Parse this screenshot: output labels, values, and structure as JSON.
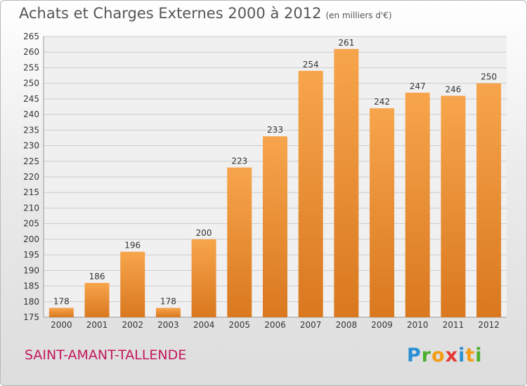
{
  "header": {
    "title": "Achats et Charges Externes 2000 à 2012",
    "subtitle": "(en milliers d'€)"
  },
  "footer": {
    "city": "SAINT-AMANT-TALLENDE",
    "logo": [
      "P",
      "r",
      "o",
      "x",
      "i",
      "t",
      "i"
    ],
    "logo_colors": [
      "#2a8fd4",
      "#4caf2e",
      "#f39c12",
      "#e53935",
      "#2a8fd4",
      "#f39c12",
      "#4caf2e"
    ]
  },
  "colors": {
    "bar_light": "#f7a54c",
    "bar_dark": "#d9781f",
    "grid": "#cccccc",
    "axis_text": "#333333"
  },
  "chart_data": {
    "type": "bar",
    "title": "Achats et Charges Externes 2000 à 2012",
    "subtitle": "(en milliers d'€)",
    "categories": [
      "2000",
      "2001",
      "2002",
      "2003",
      "2004",
      "2005",
      "2006",
      "2007",
      "2008",
      "2009",
      "2010",
      "2011",
      "2012"
    ],
    "values": [
      178,
      186,
      196,
      178,
      200,
      223,
      233,
      254,
      261,
      242,
      247,
      246,
      250
    ],
    "ylim": [
      175,
      265
    ],
    "ytick_step": 5,
    "grid": true,
    "legend": "none"
  }
}
